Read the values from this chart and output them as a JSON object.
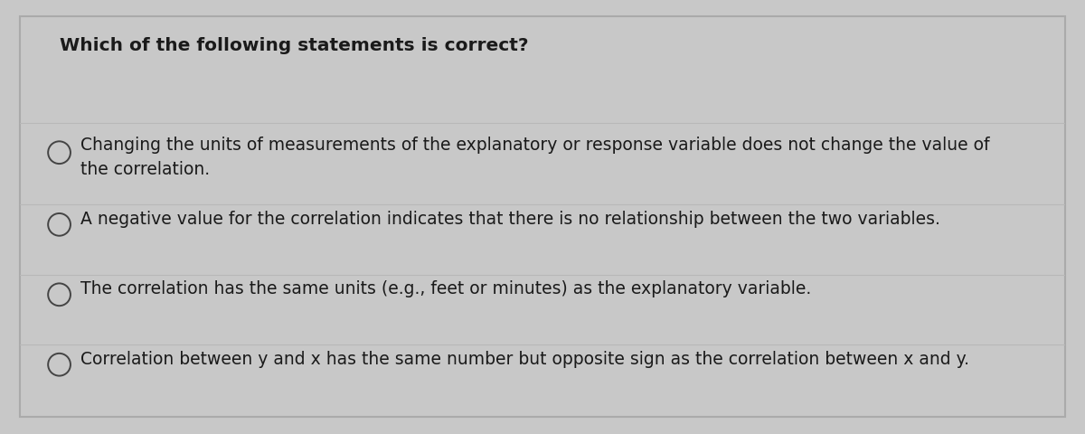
{
  "title": "Which of the following statements is correct?",
  "options": [
    "Changing the units of measurements of the explanatory or response variable does not change the value of\nthe correlation.",
    "A negative value for the correlation indicates that there is no relationship between the two variables.",
    "The correlation has the same units (e.g., feet or minutes) as the explanatory variable.",
    "Correlation between y and x has the same number but opposite sign as the correlation between x and y."
  ],
  "outer_bg_color": "#c8c8c8",
  "box_bg_color": "#e2e2e2",
  "border_color": "#aaaaaa",
  "title_fontsize": 14.5,
  "option_fontsize": 13.5,
  "text_color": "#1a1a1a",
  "title_color": "#1a1a1a",
  "line_color": "#b8b8b8",
  "circle_color": "#444444",
  "fig_width": 12.0,
  "fig_height": 4.81,
  "dpi": 100
}
